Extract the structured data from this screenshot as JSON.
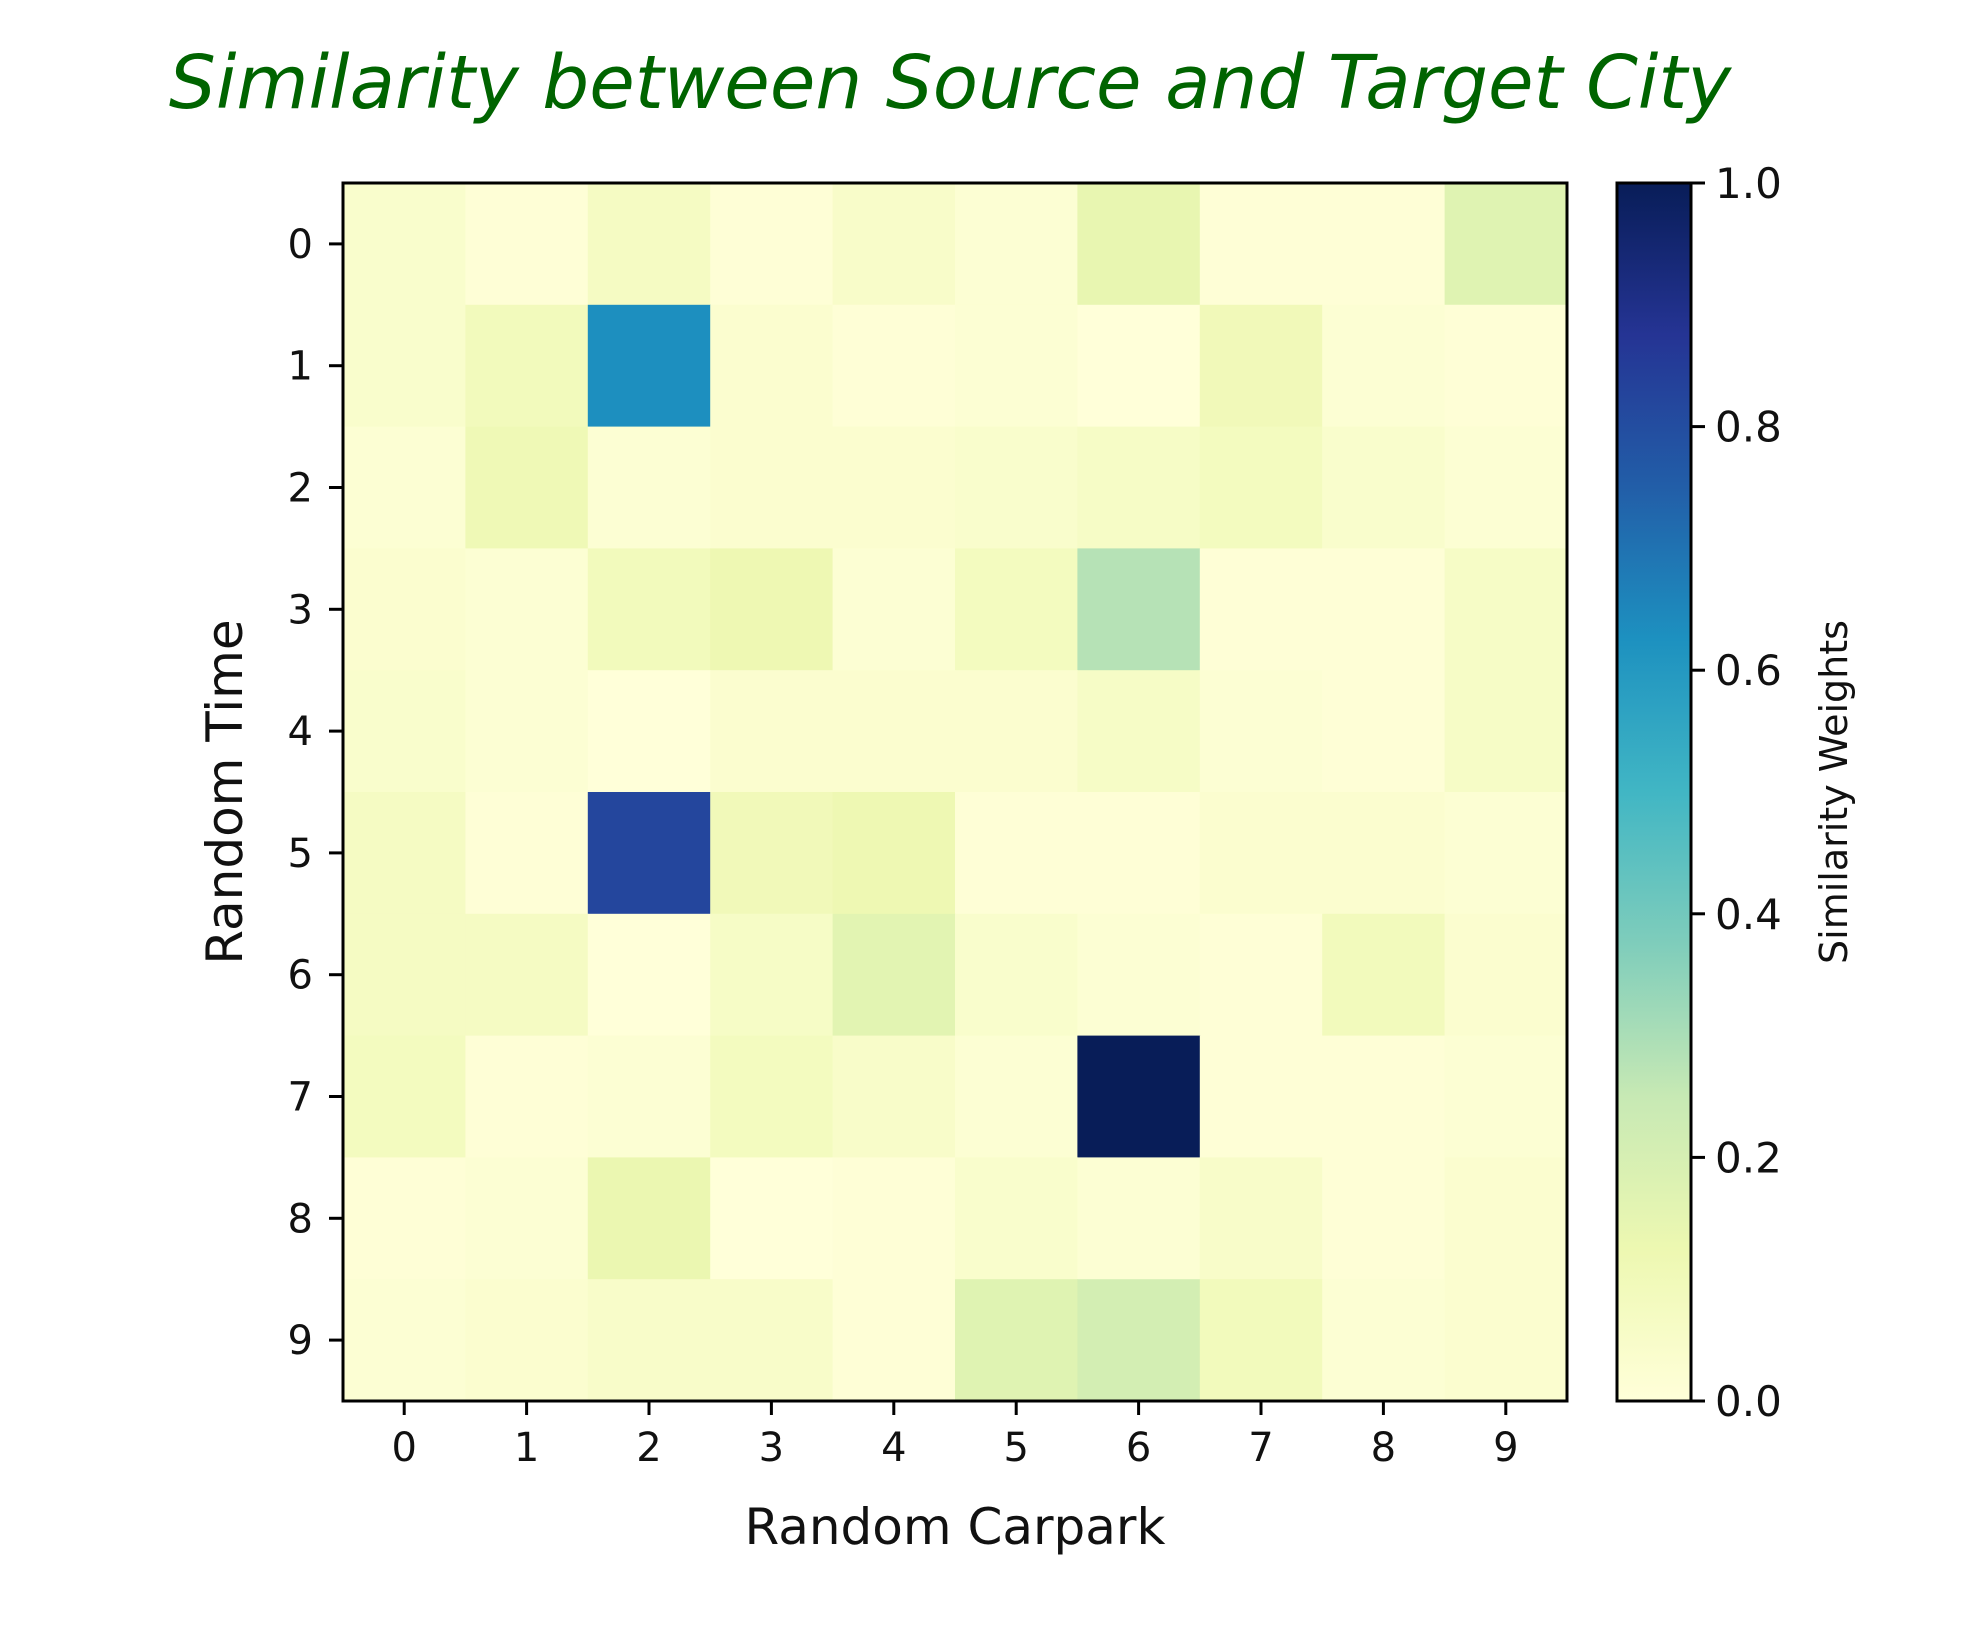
{
  "chart_data": {
    "type": "heatmap",
    "title": "Similarity between Source and Target City",
    "xlabel": "Random Carpark",
    "ylabel": "Random Time",
    "x_categories": [
      "0",
      "1",
      "2",
      "3",
      "4",
      "5",
      "6",
      "7",
      "8",
      "9"
    ],
    "y_categories": [
      "0",
      "1",
      "2",
      "3",
      "4",
      "5",
      "6",
      "7",
      "8",
      "9"
    ],
    "values": [
      [
        0.04,
        0.01,
        0.07,
        0.01,
        0.05,
        0.02,
        0.14,
        0.01,
        0.01,
        0.17
      ],
      [
        0.04,
        0.09,
        0.63,
        0.03,
        0.01,
        0.02,
        0.0,
        0.1,
        0.02,
        0.01
      ],
      [
        0.02,
        0.11,
        0.02,
        0.03,
        0.03,
        0.04,
        0.06,
        0.08,
        0.04,
        0.02
      ],
      [
        0.03,
        0.02,
        0.09,
        0.12,
        0.02,
        0.08,
        0.28,
        0.01,
        0.01,
        0.06
      ],
      [
        0.04,
        0.02,
        0.0,
        0.03,
        0.03,
        0.03,
        0.06,
        0.02,
        0.01,
        0.06
      ],
      [
        0.07,
        0.01,
        0.82,
        0.1,
        0.12,
        0.01,
        0.01,
        0.03,
        0.03,
        0.02
      ],
      [
        0.07,
        0.07,
        0.0,
        0.06,
        0.16,
        0.04,
        0.02,
        0.01,
        0.09,
        0.03
      ],
      [
        0.08,
        0.01,
        0.02,
        0.08,
        0.05,
        0.02,
        1.0,
        0.01,
        0.01,
        0.02
      ],
      [
        0.01,
        0.02,
        0.13,
        0.0,
        0.01,
        0.04,
        0.02,
        0.05,
        0.01,
        0.03
      ],
      [
        0.02,
        0.03,
        0.05,
        0.05,
        0.01,
        0.17,
        0.21,
        0.09,
        0.02,
        0.03
      ]
    ],
    "vmin": 0.0,
    "vmax": 1.0,
    "colormap": "YlGnBu",
    "colormap_stops": [
      "#ffffd9",
      "#edf8b1",
      "#c7e9b4",
      "#7fcdbb",
      "#41b6c4",
      "#1d91c0",
      "#225ea8",
      "#253494",
      "#081d58"
    ],
    "colorbar": {
      "label": "Similarity Weights",
      "ticks": [
        "0.0",
        "0.2",
        "0.4",
        "0.6",
        "0.8",
        "1.0"
      ],
      "tick_values": [
        0.0,
        0.2,
        0.4,
        0.6,
        0.8,
        1.0
      ]
    },
    "grid": false,
    "title_color": "#006400"
  }
}
